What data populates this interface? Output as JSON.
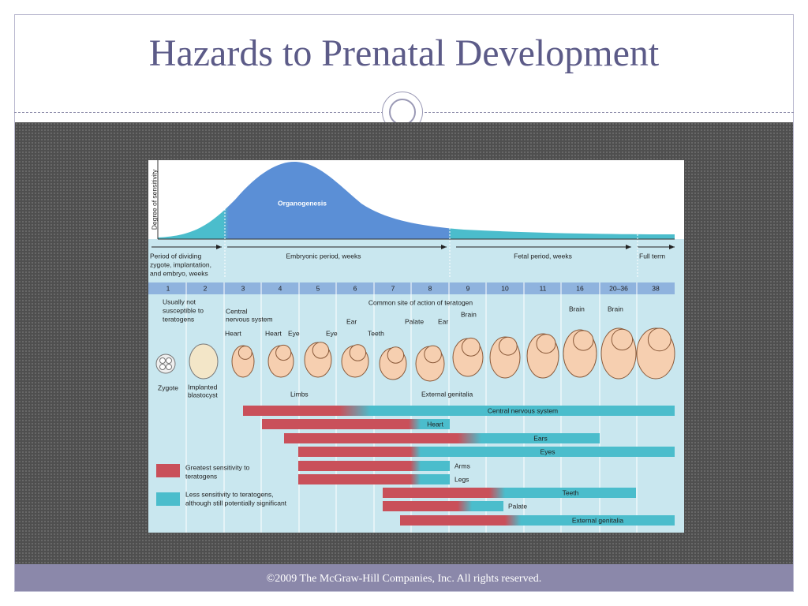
{
  "header": {
    "title": "Hazards to Prenatal Development"
  },
  "figure": {
    "axis_label": "Degree of sensitivity",
    "curve_label": "Organogenesis",
    "periods": [
      [
        "Period of dividing",
        "zygote, implantation,",
        "and embryo, weeks"
      ],
      [
        "Embryonic period, weeks"
      ],
      [
        "Fetal period, weeks"
      ],
      [
        "Full term"
      ]
    ],
    "weeks": [
      "1",
      "2",
      "3",
      "4",
      "5",
      "6",
      "7",
      "8",
      "9",
      "10",
      "11",
      "16",
      "20–36",
      "38"
    ],
    "note_left": [
      "Usually not",
      "susceptible to",
      "teratogens"
    ],
    "note_center": "Common site of action of teratogen",
    "site_labels": [
      [
        "Central",
        "nervous system"
      ],
      [
        "Heart"
      ],
      [
        "Heart"
      ],
      [
        "Eye"
      ],
      [
        "Eye"
      ],
      [
        "Ear"
      ],
      [
        "Teeth"
      ],
      [
        "Palate"
      ],
      [
        "Ear"
      ],
      [
        "Brain"
      ],
      [
        "Brain"
      ],
      [
        "Brain"
      ],
      [
        "Zygote"
      ],
      [
        "Implanted",
        "blastocyst"
      ],
      [
        "Limbs"
      ],
      [
        "External genitalia"
      ]
    ],
    "bars": [
      "Central nervous system",
      "Heart",
      "Ears",
      "Eyes",
      "Arms",
      "Legs",
      "Teeth",
      "Palate",
      "External genitalia"
    ],
    "legend": [
      [
        "Greatest sensitivity to",
        "teratogens"
      ],
      [
        "Less sensitivity to teratogens,",
        "although still potentially significant"
      ]
    ]
  },
  "footer": {
    "copyright": "©2009 The McGraw-Hill Companies, Inc. All rights reserved."
  }
}
